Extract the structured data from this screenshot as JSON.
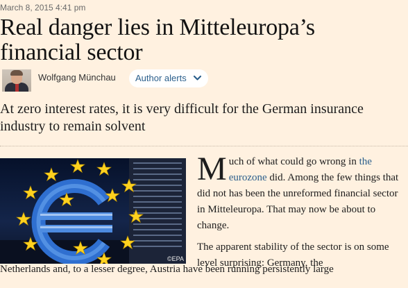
{
  "article": {
    "date": "March 8, 2015 4:41 pm",
    "headline": "Real danger lies in Mitteleuropa’s financial sector",
    "author": "Wolfgang Münchau",
    "author_alerts_label": "Author alerts",
    "standfirst": "At zero interest rates, it is very difficult for the German insurance industry to remain solvent",
    "image_credit": "©EPA",
    "paragraph1": {
      "dropcap": "M",
      "text_before_link": "uch of what could go wrong in ",
      "link_text": "the eurozone",
      "text_after_link": " did. Among the few things that did not has been the unreformed financial sector in Mitteleuropa. That may now be about to change."
    },
    "paragraph2_col": "The apparent stability of the sector is on some level surprising: Germany, the",
    "paragraph2_full": "Netherlands and, to a lesser degree, Austria have been running persistently large"
  },
  "colors": {
    "page_bg": "#fff1e0",
    "link": "#2b5f8c",
    "credit": "#e8e8e8"
  },
  "icons": {
    "author_photo": "portrait",
    "alerts": "chevron-down-icon"
  }
}
